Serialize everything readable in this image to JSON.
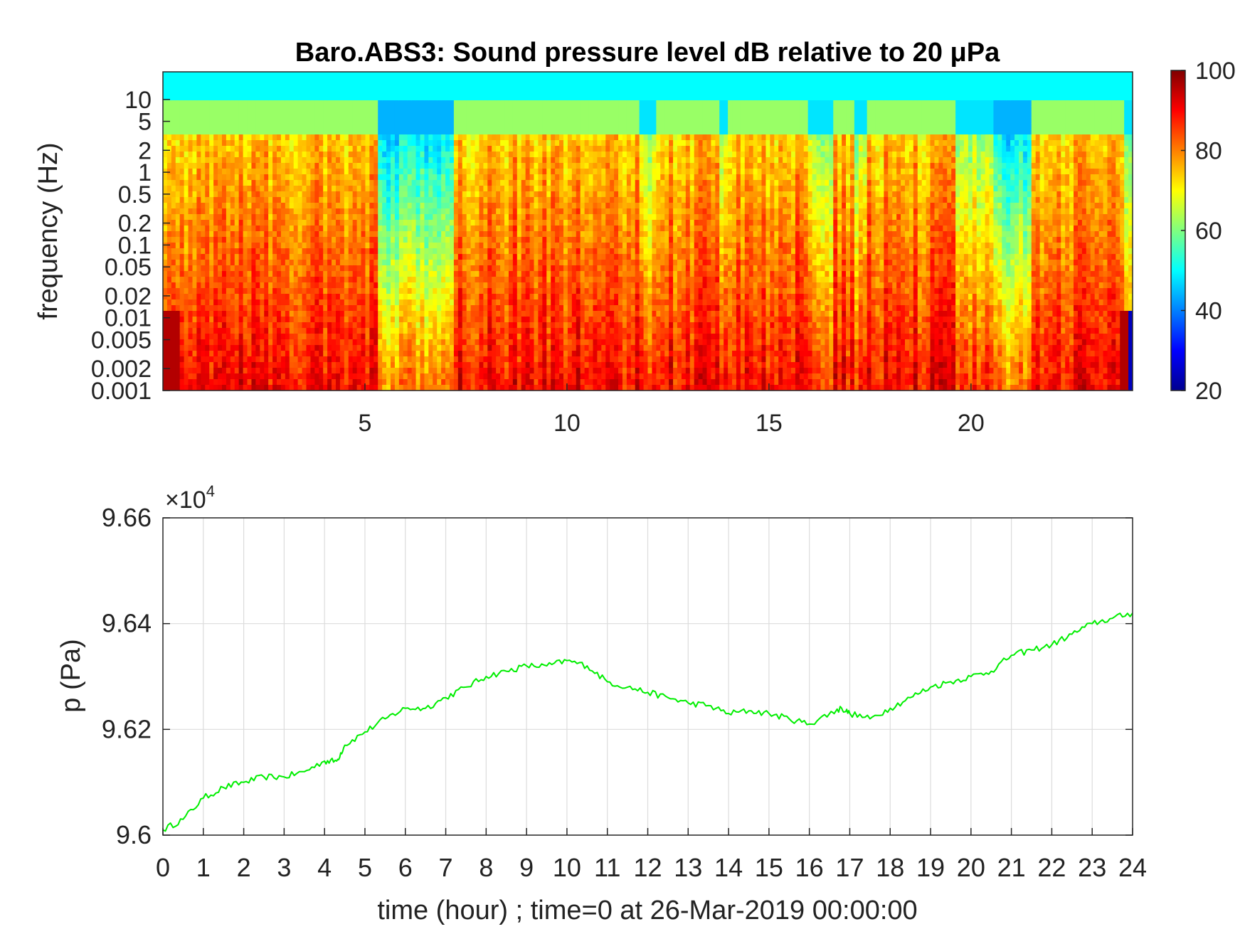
{
  "chart_data": [
    {
      "type": "heatmap",
      "title": "Baro.ABS3: Sound pressure level dB relative to 20 μPa",
      "xlabel": "",
      "ylabel": "frequency (Hz)",
      "x_range_hours": [
        0,
        24
      ],
      "xtick_labels": [
        "5",
        "10",
        "15",
        "20"
      ],
      "xticks": [
        5,
        10,
        15,
        20
      ],
      "y_scale": "log",
      "y_range_hz": [
        0.001,
        20
      ],
      "ytick_labels": [
        "10",
        "5",
        "2",
        "1",
        "0.5",
        "0.2",
        "0.1",
        "0.05",
        "0.02",
        "0.01",
        "0.005",
        "0.002",
        "0.001"
      ],
      "yticks": [
        10,
        5,
        2,
        1,
        0.5,
        0.2,
        0.1,
        0.05,
        0.02,
        0.01,
        0.005,
        0.002,
        0.001
      ],
      "colorbar": {
        "colormap": "jet",
        "range": [
          20,
          100
        ],
        "tick_labels": [
          "100",
          "80",
          "60",
          "40",
          "20"
        ],
        "ticks": [
          100,
          80,
          60,
          40,
          20
        ]
      },
      "high_level_bands_hours": [
        [
          0,
          5.3
        ],
        [
          7.2,
          11.8
        ],
        [
          12.2,
          13.8
        ],
        [
          14.0,
          16.0
        ],
        [
          16.6,
          17.1
        ],
        [
          17.4,
          19.6
        ],
        [
          21.5,
          23.8
        ]
      ],
      "quiet_gaps_hours": [
        [
          5.3,
          7.2
        ],
        [
          20.6,
          21.5
        ]
      ],
      "grid": false
    },
    {
      "type": "line",
      "title": "",
      "xlabel": "time (hour) ; time=0 at 26-Mar-2019 00:00:00",
      "ylabel": "p (Pa)",
      "y_multiplier_label": "×10",
      "y_multiplier_exponent": "4",
      "xlim": [
        0,
        24
      ],
      "ylim": [
        9.6,
        9.66
      ],
      "xtick_labels": [
        "0",
        "1",
        "2",
        "3",
        "4",
        "5",
        "6",
        "7",
        "8",
        "9",
        "10",
        "11",
        "12",
        "13",
        "14",
        "15",
        "16",
        "17",
        "18",
        "19",
        "20",
        "21",
        "22",
        "23",
        "24"
      ],
      "ytick_labels": [
        "9.66",
        "9.64",
        "9.62",
        "9.6"
      ],
      "yticks": [
        9.66,
        9.64,
        9.62,
        9.6
      ],
      "grid": true,
      "series": [
        {
          "color": "#00ee00",
          "x": [
            0,
            0.5,
            1,
            1.5,
            2,
            2.5,
            3,
            3.5,
            4,
            4.3,
            4.5,
            5,
            5.5,
            6,
            6.5,
            7,
            7.5,
            8,
            8.5,
            9,
            9.5,
            10,
            10.5,
            11,
            11.5,
            12,
            12.5,
            13,
            13.5,
            14,
            14.5,
            15,
            15.5,
            16,
            16.5,
            16.8,
            17,
            17.5,
            18,
            18.5,
            19,
            19.5,
            20,
            20.5,
            21,
            21.5,
            22,
            22.5,
            23,
            23.5,
            24
          ],
          "y": [
            9.601,
            9.603,
            9.607,
            9.609,
            9.61,
            9.611,
            9.611,
            9.612,
            9.614,
            9.614,
            9.617,
            9.6195,
            9.622,
            9.624,
            9.624,
            9.626,
            9.628,
            9.63,
            9.631,
            9.632,
            9.632,
            9.633,
            9.632,
            9.629,
            9.628,
            9.627,
            9.626,
            9.625,
            9.6245,
            9.623,
            9.6235,
            9.623,
            9.622,
            9.621,
            9.623,
            9.624,
            9.623,
            9.622,
            9.624,
            9.626,
            9.628,
            9.629,
            9.63,
            9.631,
            9.634,
            9.635,
            9.636,
            9.638,
            9.64,
            9.641,
            9.642
          ]
        }
      ]
    }
  ]
}
